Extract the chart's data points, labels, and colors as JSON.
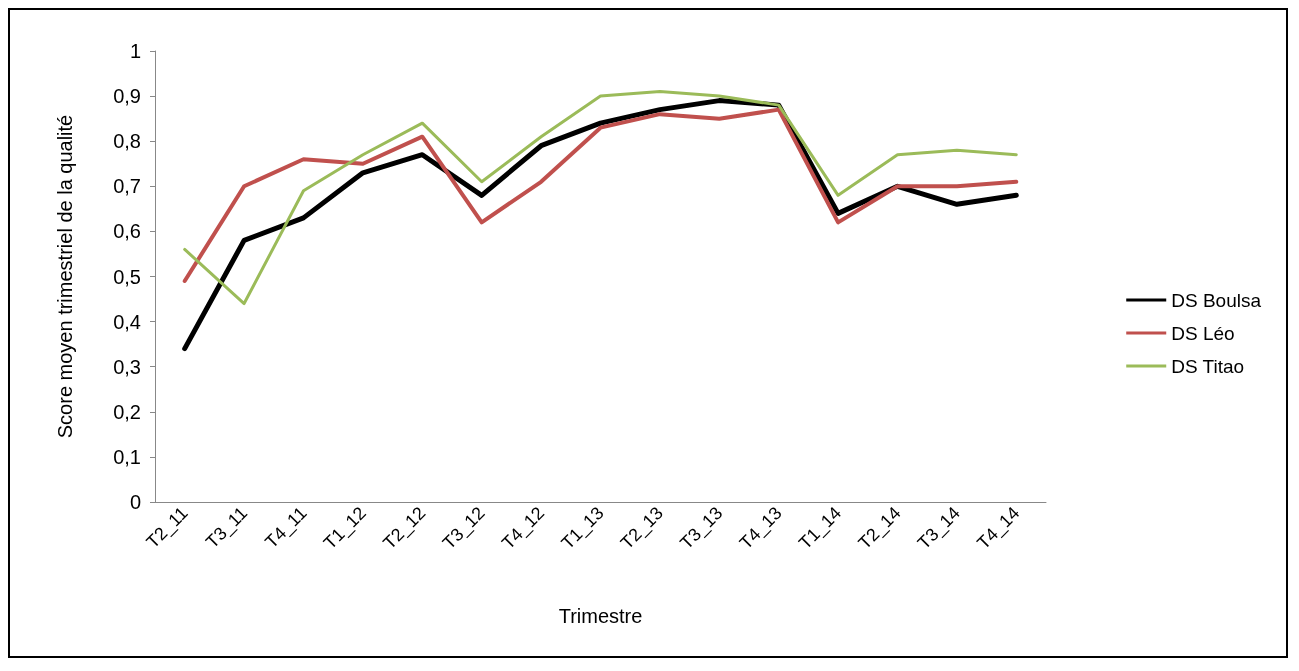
{
  "chart_data": {
    "type": "line",
    "xlabel": "Trimestre",
    "ylabel": "Score moyen trimestriel de la qualité",
    "categories": [
      "T2_11",
      "T3_11",
      "T4_11",
      "T1_12",
      "T2_12",
      "T3_12",
      "T4_12",
      "T1_13",
      "T2_13",
      "T3_13",
      "T4_13",
      "T1_14",
      "T2_14",
      "T3_14",
      "T4_14"
    ],
    "series": [
      {
        "name": "DS Boulsa",
        "color": "#000000",
        "values": [
          0.34,
          0.58,
          0.63,
          0.73,
          0.77,
          0.68,
          0.79,
          0.84,
          0.87,
          0.89,
          0.88,
          0.64,
          0.7,
          0.66,
          0.68
        ]
      },
      {
        "name": "DS Léo",
        "color": "#c0504d",
        "values": [
          0.49,
          0.7,
          0.76,
          0.75,
          0.81,
          0.62,
          0.71,
          0.83,
          0.86,
          0.85,
          0.87,
          0.62,
          0.7,
          0.7,
          0.71
        ]
      },
      {
        "name": "DS Titao",
        "color": "#9bbb59",
        "values": [
          0.56,
          0.44,
          0.69,
          0.77,
          0.84,
          0.71,
          0.81,
          0.9,
          0.91,
          0.9,
          0.88,
          0.68,
          0.77,
          0.78,
          0.77
        ]
      }
    ],
    "ylim": [
      0,
      1
    ],
    "yticks": [
      0,
      {
        "value": 0.1,
        "label": "0,1"
      },
      {
        "value": 0.2,
        "label": "0,2"
      },
      {
        "value": 0.3,
        "label": "0,3"
      },
      {
        "value": 0.4,
        "label": "0,4"
      },
      {
        "value": 0.5,
        "label": "0,5"
      },
      {
        "value": 0.6,
        "label": "0,6"
      },
      {
        "value": 0.7,
        "label": "0,7"
      },
      {
        "value": 0.8,
        "label": "0,8"
      },
      {
        "value": 0.9,
        "label": "0,9"
      },
      1
    ],
    "grid": false,
    "legend": "right",
    "marker": "none",
    "line_style": "solid"
  }
}
